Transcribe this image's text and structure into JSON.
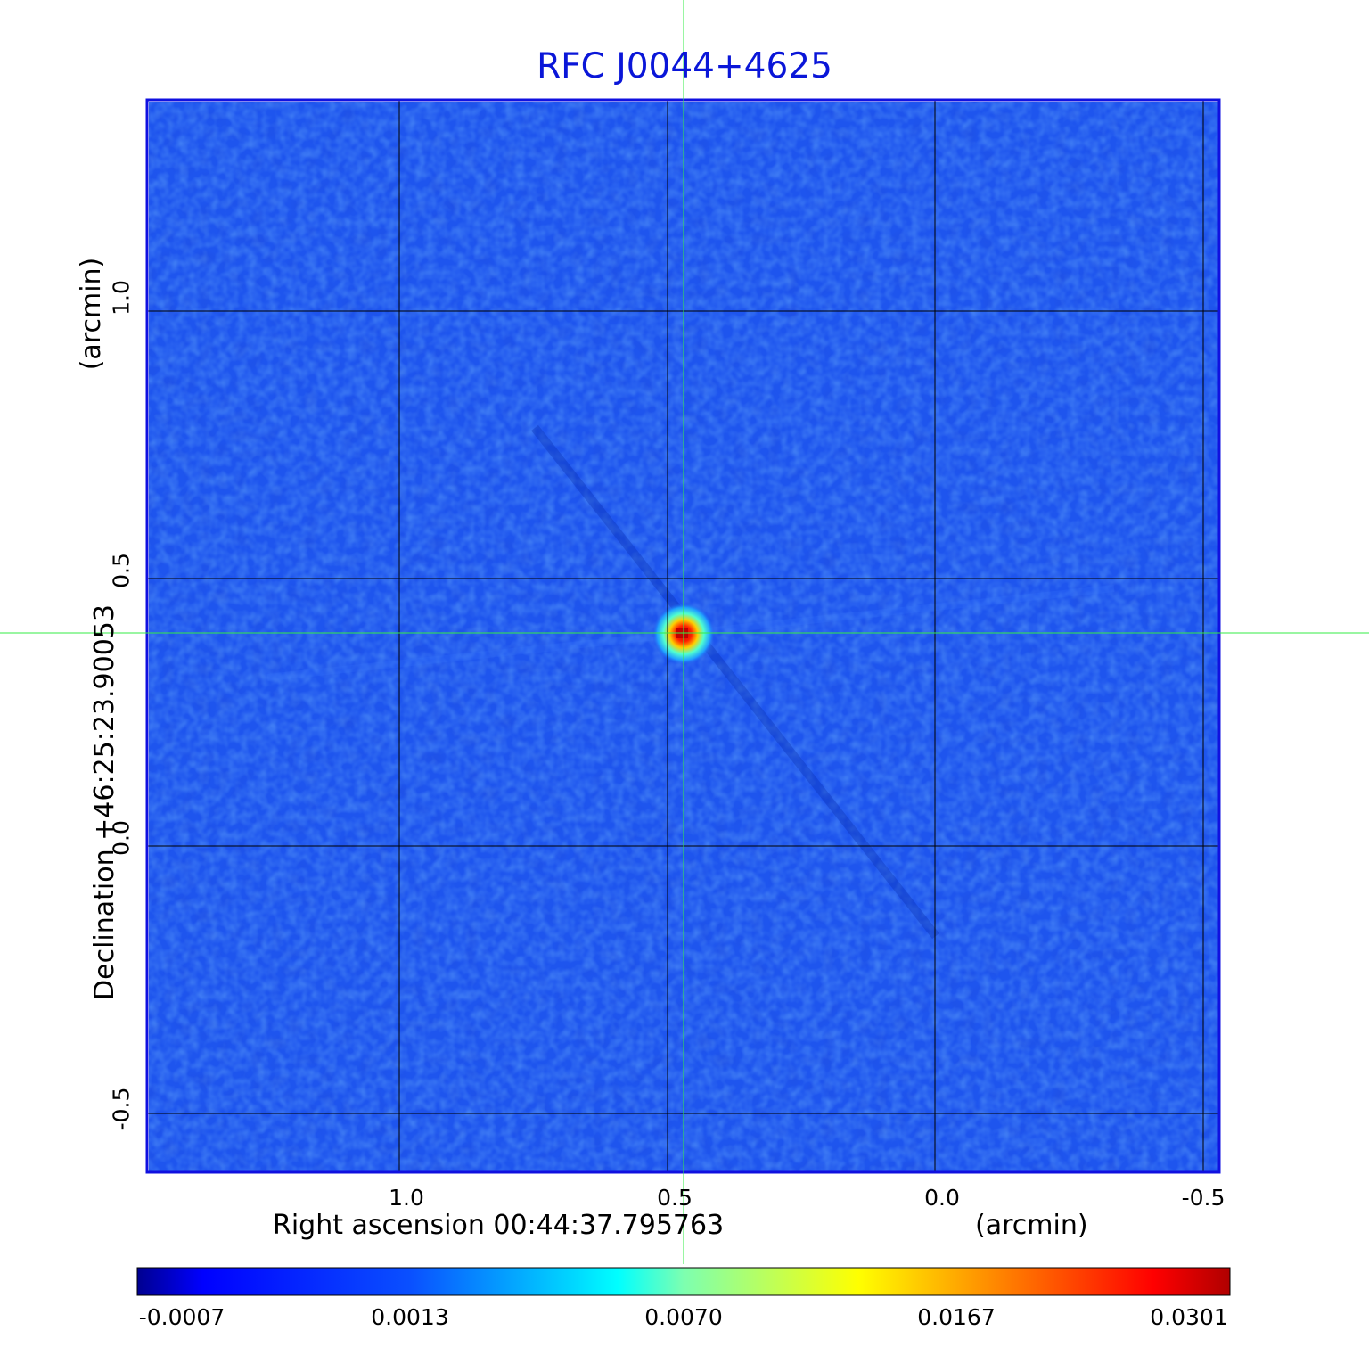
{
  "title": "RFC J0044+4625",
  "x_axis": {
    "label": "Right ascension  00:44:37.795763",
    "unit": "(arcmin)",
    "ticks": [
      "1.0",
      "0.5",
      "0.0",
      "-0.5"
    ],
    "tick_values": [
      1.0,
      0.5,
      0.0,
      -0.5
    ]
  },
  "y_axis": {
    "label": "Declination  +46:25:23.90053",
    "unit": "(arcmin)",
    "ticks": [
      "1.0",
      "0.5",
      "0.0",
      "-0.5"
    ],
    "tick_values": [
      1.0,
      0.5,
      0.0,
      -0.5
    ]
  },
  "colorbar": {
    "ticks": [
      "-0.0007",
      "0.0013",
      "0.0070",
      "0.0167",
      "0.0301"
    ],
    "colors": [
      "#000090",
      "#0000ff",
      "#0a50ff",
      "#00d8ff",
      "#00ffff",
      "#7dffb0",
      "#ffff00",
      "#ff9600",
      "#ff0000",
      "#b00000"
    ]
  },
  "colors": {
    "title": "#0a16d8",
    "background_field": "#1e55ee",
    "crosshair": "#33ee44",
    "grid": "#000000",
    "frame": "#1010e0"
  },
  "source_position_arcmin": {
    "ra_offset": 0.47,
    "dec_offset": 0.4
  }
}
